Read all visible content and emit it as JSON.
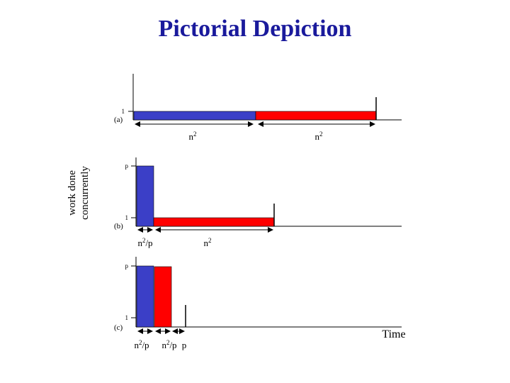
{
  "title": "Pictorial Depiction",
  "y_axis_label_line1": "work done",
  "y_axis_label_line2": "concurrently",
  "x_axis_label": "Time",
  "colors": {
    "blue": "#3b3fc7",
    "red": "#ff0000",
    "title": "#1a1a9c"
  },
  "panel_a": {
    "tag": "(a)",
    "tick_1": "1",
    "seg1": {
      "base": "n",
      "exp": "2",
      "suffix": ""
    },
    "seg2": {
      "base": "n",
      "exp": "2",
      "suffix": ""
    }
  },
  "panel_b": {
    "tag": "(b)",
    "tick_p": "p",
    "tick_1": "1",
    "seg1": {
      "base": "n",
      "exp": "2",
      "suffix": "/p"
    },
    "seg2": {
      "base": "n",
      "exp": "2",
      "suffix": ""
    }
  },
  "panel_c": {
    "tag": "(c)",
    "tick_p": "p",
    "tick_1": "1",
    "seg1": {
      "base": "n",
      "exp": "2",
      "suffix": "/p"
    },
    "seg2": {
      "base": "n",
      "exp": "2",
      "suffix": "/p"
    },
    "seg3": "p"
  }
}
